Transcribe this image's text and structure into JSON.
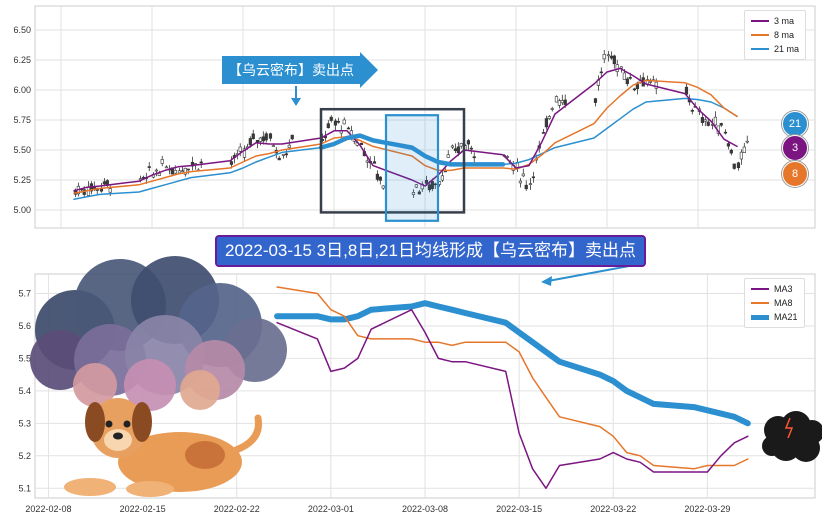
{
  "colors": {
    "ma3": "#7b1582",
    "ma8": "#e6762a",
    "ma21": "#2b8fd0",
    "ma21_thick": "#2b8fd0",
    "candle_up": "#ffffff",
    "candle_down": "#3a3a3a",
    "callout_blue": "#2b8fd0",
    "banner_bg": "#3366cc",
    "banner_border": "#6a1b9a",
    "box_dark": "#37404a",
    "box_blue": "#2b8fd0"
  },
  "annotations": {
    "arrow_callout": "【乌云密布】卖出点",
    "banner": "2022-03-15 3日,8日,21日均线形成【乌云密布】卖出点"
  },
  "badges": [
    {
      "label": "21",
      "color": "#2b8fd0"
    },
    {
      "label": "3",
      "color": "#7b1582"
    },
    {
      "label": "8",
      "color": "#e6762a"
    }
  ],
  "icons": [
    "storm-cloud-icon",
    "dog-icon",
    "small-storm-cloud-icon"
  ],
  "chart_data": [
    {
      "type": "candlestick",
      "title": "",
      "xlabel": "",
      "ylabel": "",
      "xlim": [
        "2022-02-06",
        "2022-04-07"
      ],
      "ylim": [
        4.85,
        6.7
      ],
      "ytick_labels": [
        "5.00",
        "5.25",
        "5.50",
        "5.75",
        "6.00",
        "6.25",
        "6.50"
      ],
      "yticks": [
        5.0,
        5.25,
        5.5,
        5.75,
        6.0,
        6.25,
        6.5
      ],
      "grid": true,
      "legend_position": "top-right",
      "legend": [
        "3 ma",
        "8 ma",
        "21 ma"
      ],
      "x": [
        "2022-02-09",
        "2022-02-10",
        "2022-02-11",
        "2022-02-14",
        "2022-02-15",
        "2022-02-16",
        "2022-02-17",
        "2022-02-18",
        "2022-02-21",
        "2022-02-22",
        "2022-02-23",
        "2022-02-24",
        "2022-02-25",
        "2022-02-28",
        "2022-03-01",
        "2022-03-02",
        "2022-03-03",
        "2022-03-04",
        "2022-03-07",
        "2022-03-08",
        "2022-03-09",
        "2022-03-10",
        "2022-03-11",
        "2022-03-14",
        "2022-03-15",
        "2022-03-16",
        "2022-03-17",
        "2022-03-18",
        "2022-03-21",
        "2022-03-22",
        "2022-03-23",
        "2022-03-24",
        "2022-03-25",
        "2022-03-28",
        "2022-03-29",
        "2022-03-30",
        "2022-03-31",
        "2022-04-01"
      ],
      "close": [
        5.18,
        5.2,
        5.22,
        5.3,
        5.36,
        5.34,
        5.38,
        5.4,
        5.46,
        5.6,
        5.62,
        5.45,
        5.58,
        5.74,
        5.68,
        5.56,
        5.38,
        5.18,
        5.2,
        5.22,
        5.45,
        5.55,
        5.5,
        5.35,
        5.2,
        5.55,
        5.95,
        5.9,
        6.3,
        6.2,
        6.05,
        6.1,
        6.0,
        5.8,
        5.72,
        5.7,
        5.35,
        5.55
      ],
      "series": [
        {
          "name": "3 ma",
          "values": [
            5.16,
            5.19,
            5.2,
            5.24,
            5.29,
            5.33,
            5.36,
            5.37,
            5.41,
            5.49,
            5.56,
            5.55,
            5.55,
            5.6,
            5.66,
            5.66,
            5.54,
            5.37,
            5.25,
            5.2,
            5.29,
            5.41,
            5.5,
            5.46,
            5.35,
            5.37,
            5.57,
            5.8,
            6.05,
            6.15,
            6.18,
            6.12,
            6.05,
            5.97,
            5.84,
            5.74,
            5.59,
            5.53
          ]
        },
        {
          "name": "8 ma",
          "values": [
            5.14,
            5.16,
            5.18,
            5.21,
            5.24,
            5.27,
            5.3,
            5.32,
            5.35,
            5.4,
            5.45,
            5.47,
            5.5,
            5.55,
            5.6,
            5.61,
            5.58,
            5.53,
            5.45,
            5.37,
            5.33,
            5.33,
            5.35,
            5.35,
            5.34,
            5.38,
            5.46,
            5.56,
            5.72,
            5.85,
            5.95,
            6.04,
            6.08,
            6.06,
            6.02,
            5.96,
            5.85,
            5.78
          ]
        },
        {
          "name": "21 ma",
          "values": [
            5.09,
            5.11,
            5.13,
            5.15,
            5.18,
            5.21,
            5.24,
            5.27,
            5.31,
            5.35,
            5.4,
            5.44,
            5.48,
            5.52,
            5.55,
            5.6,
            5.62,
            5.58,
            5.52,
            5.45,
            5.4,
            5.38,
            5.38,
            5.38,
            5.39,
            5.42,
            5.47,
            5.52,
            5.6,
            5.68,
            5.76,
            5.84,
            5.9,
            5.93,
            5.92,
            5.9,
            5.85,
            5.78
          ]
        }
      ]
    },
    {
      "type": "line",
      "title": "",
      "xlabel": "",
      "ylabel": "",
      "xlim": [
        "2022-02-07",
        "2022-04-06"
      ],
      "ylim": [
        5.07,
        5.76
      ],
      "ytick_labels": [
        "5.1",
        "5.2",
        "5.3",
        "5.4",
        "5.5",
        "5.6",
        "5.7"
      ],
      "yticks": [
        5.1,
        5.2,
        5.3,
        5.4,
        5.5,
        5.6,
        5.7
      ],
      "xtick_labels": [
        "2022-02-08",
        "2022-02-15",
        "2022-02-22",
        "2022-03-01",
        "2022-03-08",
        "2022-03-15",
        "2022-03-22",
        "2022-03-29"
      ],
      "xticks": [
        "2022-02-08",
        "2022-02-15",
        "2022-02-22",
        "2022-03-01",
        "2022-03-08",
        "2022-03-15",
        "2022-03-22",
        "2022-03-29"
      ],
      "grid": true,
      "legend_position": "top-right",
      "legend": [
        "MA3",
        "MA8",
        "MA21"
      ],
      "x": [
        "2022-02-25",
        "2022-02-28",
        "2022-03-01",
        "2022-03-02",
        "2022-03-03",
        "2022-03-04",
        "2022-03-07",
        "2022-03-08",
        "2022-03-09",
        "2022-03-10",
        "2022-03-11",
        "2022-03-14",
        "2022-03-15",
        "2022-03-16",
        "2022-03-17",
        "2022-03-18",
        "2022-03-21",
        "2022-03-22",
        "2022-03-23",
        "2022-03-24",
        "2022-03-25",
        "2022-03-28",
        "2022-03-29",
        "2022-03-30",
        "2022-03-31",
        "2022-04-01"
      ],
      "series": [
        {
          "name": "MA3",
          "values": [
            5.61,
            5.56,
            5.46,
            5.47,
            5.5,
            5.59,
            5.65,
            5.58,
            5.5,
            5.49,
            5.49,
            5.46,
            5.27,
            5.16,
            5.1,
            5.17,
            5.19,
            5.21,
            5.19,
            5.18,
            5.15,
            5.15,
            5.15,
            5.2,
            5.24,
            5.26
          ]
        },
        {
          "name": "MA8",
          "values": [
            5.72,
            5.7,
            5.65,
            5.63,
            5.57,
            5.56,
            5.56,
            5.55,
            5.55,
            5.54,
            5.55,
            5.55,
            5.52,
            5.44,
            5.38,
            5.32,
            5.29,
            5.26,
            5.21,
            5.2,
            5.17,
            5.16,
            5.17,
            5.17,
            5.17,
            5.19
          ]
        },
        {
          "name": "MA21",
          "values": [
            5.63,
            5.63,
            5.62,
            5.62,
            5.63,
            5.65,
            5.66,
            5.67,
            5.66,
            5.65,
            5.64,
            5.61,
            5.58,
            5.55,
            5.52,
            5.49,
            5.45,
            5.43,
            5.4,
            5.38,
            5.36,
            5.35,
            5.34,
            5.33,
            5.32,
            5.3
          ]
        }
      ]
    }
  ]
}
